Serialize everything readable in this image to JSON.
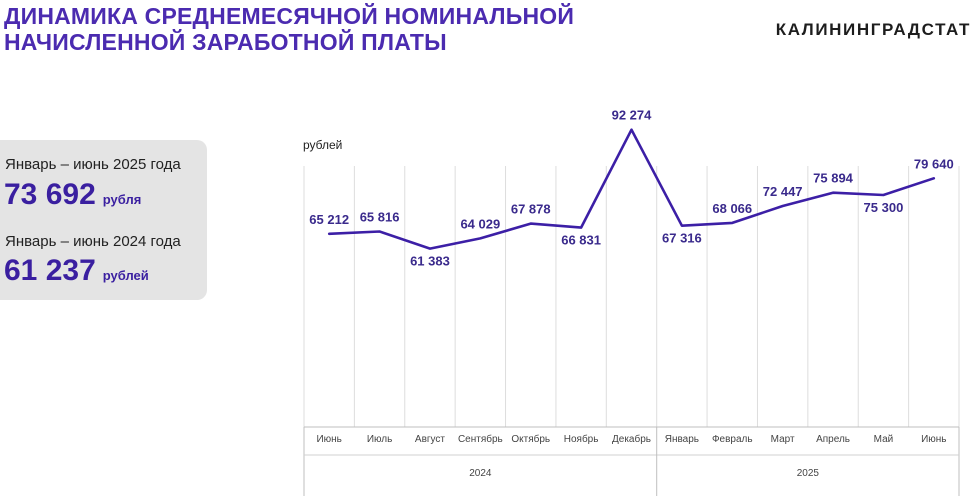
{
  "header": {
    "title_line1": "ДИНАМИКА СРЕДНЕМЕСЯЧНОЙ НОМИНАЛЬНОЙ",
    "title_line2": "НАЧИСЛЕННОЙ ЗАРАБОТНОЙ ПЛАТЫ",
    "brand": "КАЛИНИНГРАДСТАТ"
  },
  "summary": {
    "current_period": "Январь – июнь 2025 года",
    "current_value": "73 692",
    "current_unit": "рубля",
    "previous_period": "Январь – июнь 2024 года",
    "previous_value": "61 237",
    "previous_unit": "рублей"
  },
  "chart_data": {
    "type": "line",
    "ylabel": "рублей",
    "categories": [
      "Июнь",
      "Июль",
      "Август",
      "Сентябрь",
      "Октябрь",
      "Ноябрь",
      "Декабрь",
      "Январь",
      "Февраль",
      "Март",
      "Апрель",
      "Май",
      "Июнь"
    ],
    "values": [
      65212,
      65816,
      61383,
      64029,
      67878,
      66831,
      92274,
      67316,
      68066,
      72447,
      75894,
      75300,
      79640
    ],
    "value_labels": [
      "65 212",
      "65 816",
      "61 383",
      "64 029",
      "67 878",
      "66 831",
      "92 274",
      "67 316",
      "68 066",
      "72 447",
      "75 894",
      "75 300",
      "79 640"
    ],
    "year_groups": [
      {
        "label": "2024",
        "count": 7
      },
      {
        "label": "2025",
        "count": 6
      }
    ],
    "ylim": [
      15000,
      100000
    ],
    "grid": "vertical",
    "line_color": "#3c1fa6"
  }
}
